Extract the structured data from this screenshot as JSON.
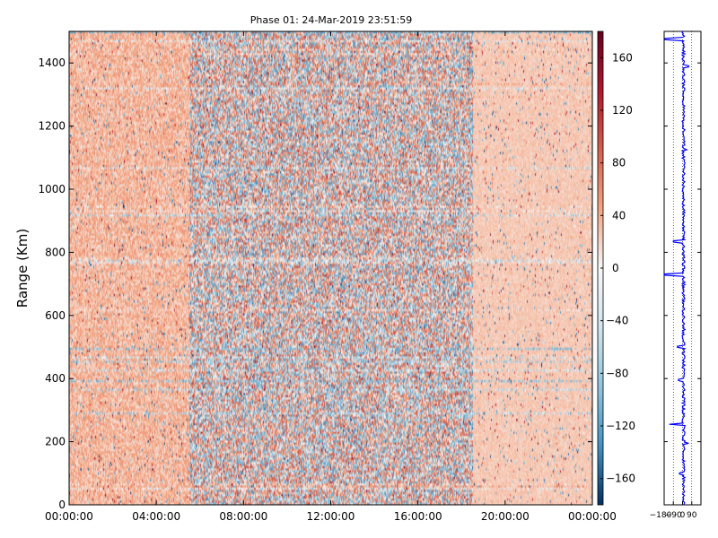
{
  "chart_data": [
    {
      "type": "heatmap",
      "title": "Phase 01: 24-Mar-2019 23:51:59",
      "ylabel": "Range (Km)",
      "xlabel": "",
      "x_ticks": [
        "00:00:00",
        "04:00:00",
        "08:00:00",
        "12:00:00",
        "16:00:00",
        "20:00:00",
        "00:00:00"
      ],
      "x_range_hours": [
        0,
        24
      ],
      "y_ticks": [
        0,
        200,
        400,
        600,
        800,
        1000,
        1200,
        1400
      ],
      "ylim": [
        0,
        1500
      ],
      "colorbar": {
        "colormap": "RdBu_r",
        "ticks": [
          160,
          120,
          80,
          40,
          0,
          -40,
          -80,
          -120,
          -160
        ],
        "range": [
          -180,
          180
        ]
      },
      "description_regions": [
        {
          "x_hours": [
            0,
            5.5
          ],
          "dominant_value": 35,
          "noise": 25
        },
        {
          "x_hours": [
            5.5,
            18.5
          ],
          "dominant_value": 10,
          "noise": 95
        },
        {
          "x_hours": [
            18.5,
            24
          ],
          "dominant_value": 25,
          "noise": 10
        }
      ]
    },
    {
      "type": "line",
      "xlabel": "",
      "ylabel": "",
      "x_ticks": [
        "−180",
        "−90",
        "0",
        "90"
      ],
      "xlim": [
        -180,
        180
      ],
      "ylim": [
        0,
        1500
      ],
      "grid": true,
      "line_color": "#0000ff",
      "baseline_value": 10,
      "spikes": [
        {
          "y": 1475,
          "x": -170
        },
        {
          "y": 1390,
          "x": 60
        },
        {
          "y": 1125,
          "x": 40
        },
        {
          "y": 835,
          "x": -90
        },
        {
          "y": 730,
          "x": -180
        },
        {
          "y": 500,
          "x": -50
        },
        {
          "y": 395,
          "x": -40
        },
        {
          "y": 255,
          "x": -130
        },
        {
          "y": 195,
          "x": 60
        },
        {
          "y": 100,
          "x": -30
        }
      ]
    }
  ],
  "colors": {
    "profile_line": "#0000ff",
    "axes": "#000000"
  }
}
